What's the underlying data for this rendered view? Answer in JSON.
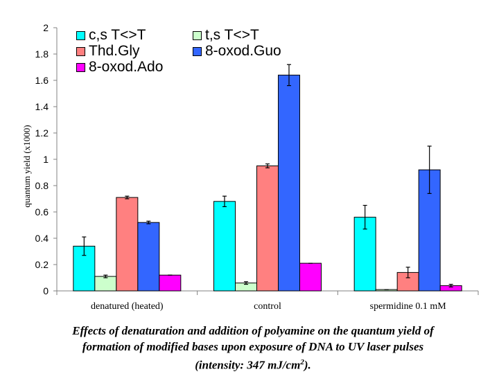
{
  "chart_data": {
    "type": "bar",
    "title": "",
    "xlabel": "",
    "ylabel": "quantum yield (x1000)",
    "ylim": [
      0,
      2
    ],
    "yticks": [
      "0",
      "0.2",
      "0.4",
      "0.6",
      "0.8",
      "1",
      "1.2",
      "1.4",
      "1.6",
      "1.8",
      "2"
    ],
    "grid": false,
    "legend_position": "top-left",
    "categories": [
      "denatured (heated)",
      "control",
      "spermidine 0.1 mM"
    ],
    "series": [
      {
        "name": "c,s T<>T",
        "color": "#00ffff",
        "values": [
          0.34,
          0.68,
          0.56
        ],
        "errors": [
          0.07,
          0.04,
          0.09
        ]
      },
      {
        "name": "t,s T<>T",
        "color": "#ccffcc",
        "values": [
          0.11,
          0.06,
          0.01
        ],
        "errors": [
          0.01,
          0.01,
          0.0
        ]
      },
      {
        "name": "Thd.Gly",
        "color": "#ff8080",
        "values": [
          0.71,
          0.95,
          0.14
        ],
        "errors": [
          0.01,
          0.015,
          0.04
        ]
      },
      {
        "name": "8-oxod.Guo",
        "color": "#3366ff",
        "values": [
          0.52,
          1.64,
          0.92
        ],
        "errors": [
          0.01,
          0.08,
          0.18
        ]
      },
      {
        "name": "8-oxod.Ado",
        "color": "#ff00ff",
        "values": [
          0.12,
          0.21,
          0.04
        ],
        "errors": [
          0.0,
          0.0,
          0.01
        ]
      }
    ]
  },
  "legend": {
    "items": [
      {
        "label": "c,s T<>T",
        "color": "#00ffff"
      },
      {
        "label": "t,s T<>T",
        "color": "#ccffcc"
      },
      {
        "label": "Thd.Gly",
        "color": "#ff8080"
      },
      {
        "label": "8-oxod.Guo",
        "color": "#3366ff"
      },
      {
        "label": "8-oxod.Ado",
        "color": "#ff00ff"
      }
    ]
  },
  "caption": {
    "line1": "Effects of denaturation and addition of polyamine on the quantum yield of",
    "line2": "formation of modified bases upon exposure of DNA to UV laser pulses",
    "line3_prefix": "(intensity: 347 mJ/cm",
    "line3_sup": "2",
    "line3_suffix": ")."
  }
}
